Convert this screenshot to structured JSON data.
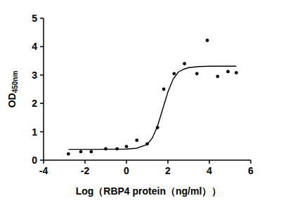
{
  "chart_data": {
    "type": "scatter",
    "xlabel": "Log（RBP4 protein（ng/ml））",
    "ylabel": "OD450nm",
    "xlim": [
      -4,
      6
    ],
    "ylim": [
      0,
      5
    ],
    "xticks": [
      -4,
      -2,
      0,
      2,
      4,
      6
    ],
    "yticks": [
      0,
      1,
      2,
      3,
      4,
      5
    ],
    "grid": false,
    "series": [
      {
        "type": "scatter",
        "color": "#000000",
        "marker": "circle",
        "x": [
          -2.8,
          -2.2,
          -1.7,
          -1.0,
          -0.45,
          0.0,
          0.5,
          1.0,
          1.5,
          1.8,
          2.3,
          2.8,
          3.4,
          3.9,
          4.4,
          4.9,
          5.3
        ],
        "values": [
          0.22,
          0.3,
          0.3,
          0.4,
          0.4,
          0.48,
          0.7,
          0.57,
          1.15,
          2.5,
          3.05,
          3.4,
          3.05,
          4.22,
          2.95,
          3.12,
          3.08
        ]
      },
      {
        "type": "line",
        "color": "#000000",
        "line_style": "solid",
        "x": [
          -2.8,
          -1.5,
          0.0,
          0.5,
          1.0,
          1.25,
          1.5,
          1.75,
          2.0,
          2.25,
          2.5,
          2.75,
          3.0,
          3.5,
          4.0,
          5.3
        ],
        "values": [
          0.38,
          0.38,
          0.39,
          0.42,
          0.55,
          0.78,
          1.2,
          1.8,
          2.4,
          2.85,
          3.1,
          3.2,
          3.26,
          3.3,
          3.31,
          3.31
        ]
      }
    ]
  }
}
